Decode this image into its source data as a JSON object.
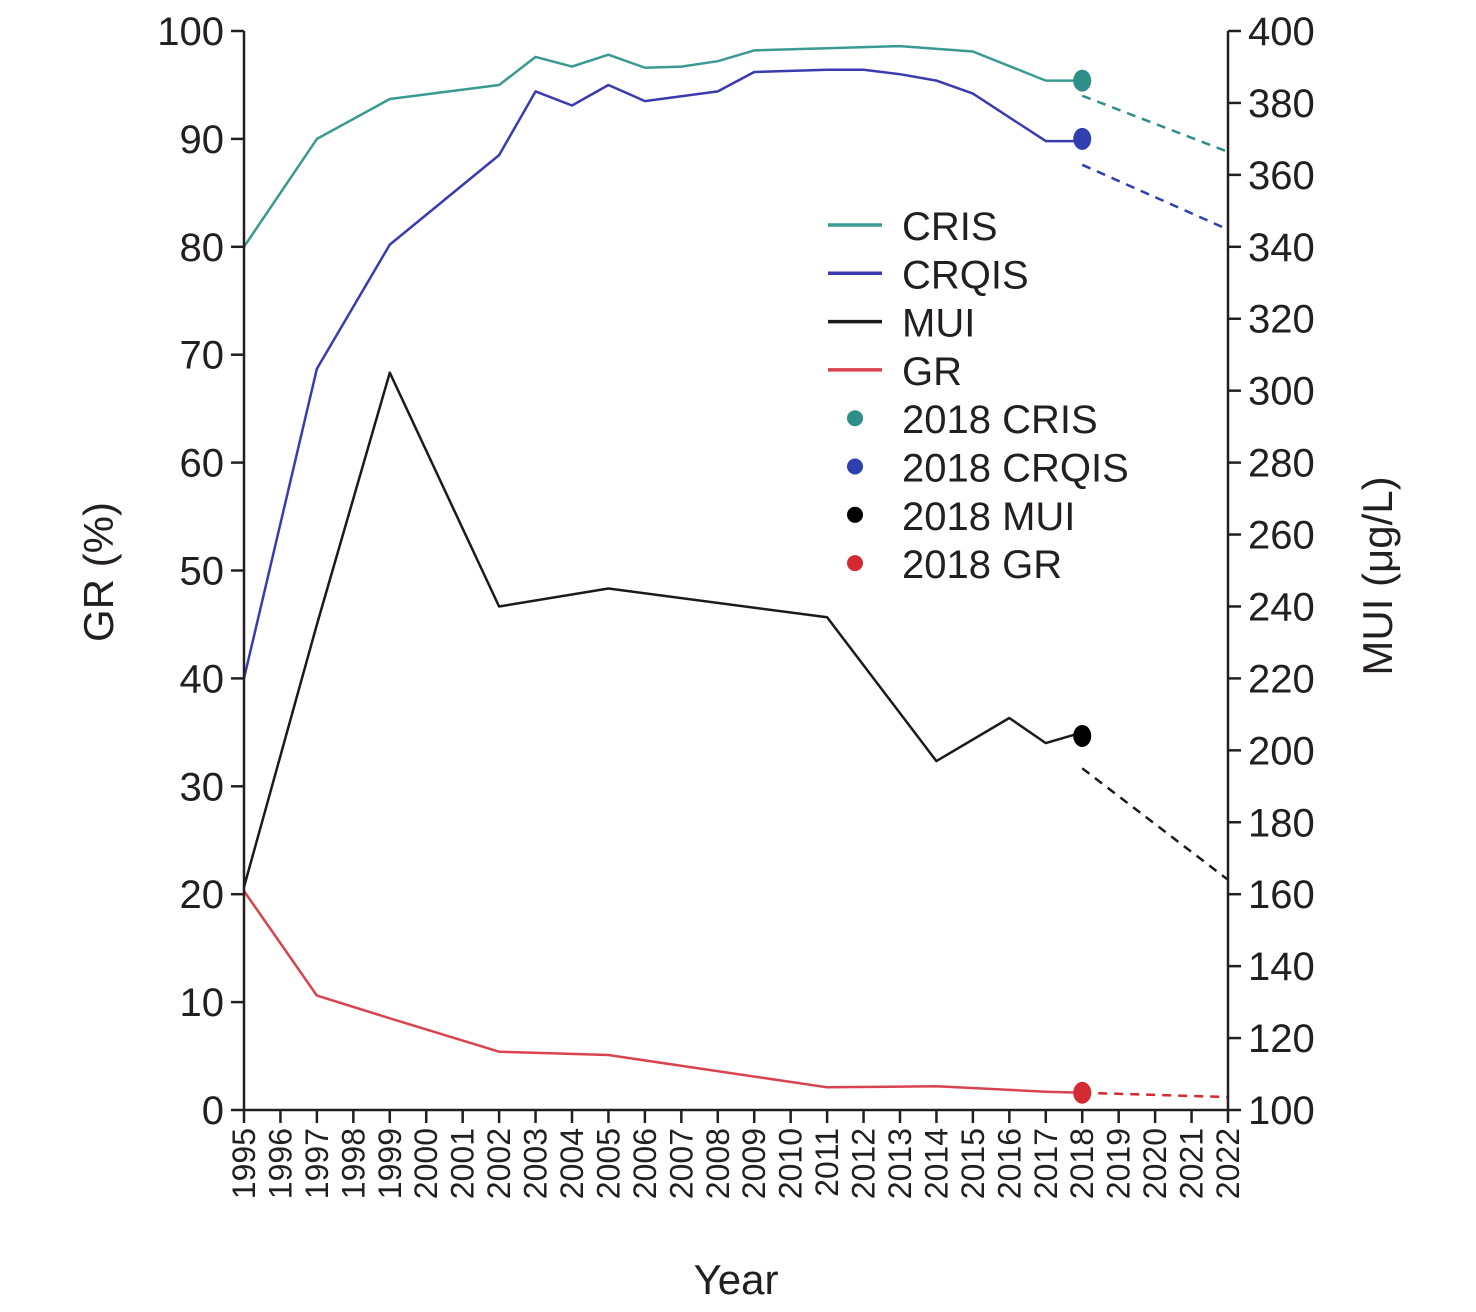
{
  "chart_data": {
    "type": "line",
    "xlabel": "Year",
    "ylabel_left": "GR (%)",
    "ylabel_right": "MUI (μg/L)",
    "x_categories": [
      "1995",
      "1996",
      "1997",
      "1998",
      "1999",
      "2000",
      "2001",
      "2002",
      "2003",
      "2004",
      "2005",
      "2006",
      "2007",
      "2008",
      "2009",
      "2010",
      "2011",
      "2012",
      "2013",
      "2014",
      "2015",
      "2016",
      "2017",
      "2018",
      "2019",
      "2020",
      "2021",
      "2022"
    ],
    "ylim_left": [
      0,
      100
    ],
    "yticks_left": [
      0,
      10,
      20,
      30,
      40,
      50,
      60,
      70,
      80,
      90,
      100
    ],
    "ylim_right": [
      100,
      400
    ],
    "yticks_right": [
      100,
      120,
      140,
      160,
      180,
      200,
      220,
      240,
      260,
      280,
      300,
      320,
      340,
      360,
      380,
      400
    ],
    "legend_position": "upper-right",
    "grid": false,
    "series": [
      {
        "name": "CRIS",
        "axis": "left",
        "color": "#3a9a92",
        "x": [
          1995,
          1997,
          1999,
          2002,
          2003,
          2004,
          2005,
          2006,
          2007,
          2008,
          2009,
          2011,
          2013,
          2015,
          2017,
          2018
        ],
        "y": [
          80,
          90,
          93.7,
          95,
          97.6,
          96.7,
          97.8,
          96.6,
          96.7,
          97.2,
          98.2,
          98.4,
          98.6,
          98.1,
          95.4,
          95.4
        ]
      },
      {
        "name": "CRQIS",
        "axis": "left",
        "color": "#3b3bb0",
        "x": [
          1995,
          1997,
          1999,
          2002,
          2003,
          2004,
          2005,
          2006,
          2008,
          2009,
          2011,
          2012,
          2013,
          2014,
          2015,
          2017,
          2018
        ],
        "y": [
          40,
          68.7,
          80.2,
          88.5,
          94.4,
          93.1,
          95,
          93.5,
          94.4,
          96.2,
          96.4,
          96.4,
          96,
          95.4,
          94.2,
          89.8,
          89.8
        ]
      },
      {
        "name": "MUI",
        "axis": "right",
        "color": "#1a1a1a",
        "x": [
          1995,
          1997,
          1999,
          2002,
          2005,
          2011,
          2014,
          2016,
          2017,
          2018
        ],
        "y": [
          162,
          235,
          305,
          240,
          245,
          237,
          197,
          209,
          202,
          205
        ]
      },
      {
        "name": "GR",
        "axis": "left",
        "color": "#d9434f",
        "x": [
          1995,
          1997,
          1999,
          2002,
          2005,
          2011,
          2014,
          2017,
          2018
        ],
        "y": [
          20.3,
          10.6,
          8.5,
          5.4,
          5.1,
          2.1,
          2.2,
          1.7,
          1.6
        ]
      }
    ],
    "points_2018": [
      {
        "name": "2018 CRIS",
        "axis": "left",
        "x": 2018,
        "y": 95.4,
        "color": "#2e8f88"
      },
      {
        "name": "2018 CRQIS",
        "axis": "left",
        "x": 2018,
        "y": 90,
        "color": "#2f3fb0"
      },
      {
        "name": "2018 MUI",
        "axis": "right",
        "x": 2018,
        "y": 204,
        "color": "#000000"
      },
      {
        "name": "2018 GR",
        "axis": "left",
        "x": 2018,
        "y": 1.6,
        "color": "#d42a33"
      }
    ],
    "projections": [
      {
        "series": "CRIS",
        "axis": "left",
        "color": "#2e8f88",
        "from": [
          2018,
          94
        ],
        "to": [
          2022,
          88.8
        ]
      },
      {
        "series": "CRQIS",
        "axis": "left",
        "color": "#2f3fb0",
        "from": [
          2018,
          87.6
        ],
        "to": [
          2022,
          81.6
        ]
      },
      {
        "series": "MUI",
        "axis": "right",
        "color": "#1a1a1a",
        "from": [
          2018,
          195
        ],
        "to": [
          2022,
          164
        ]
      },
      {
        "series": "GR",
        "axis": "left",
        "color": "#d42a33",
        "from": [
          2018,
          1.6
        ],
        "to": [
          2022,
          1.2
        ]
      }
    ]
  }
}
